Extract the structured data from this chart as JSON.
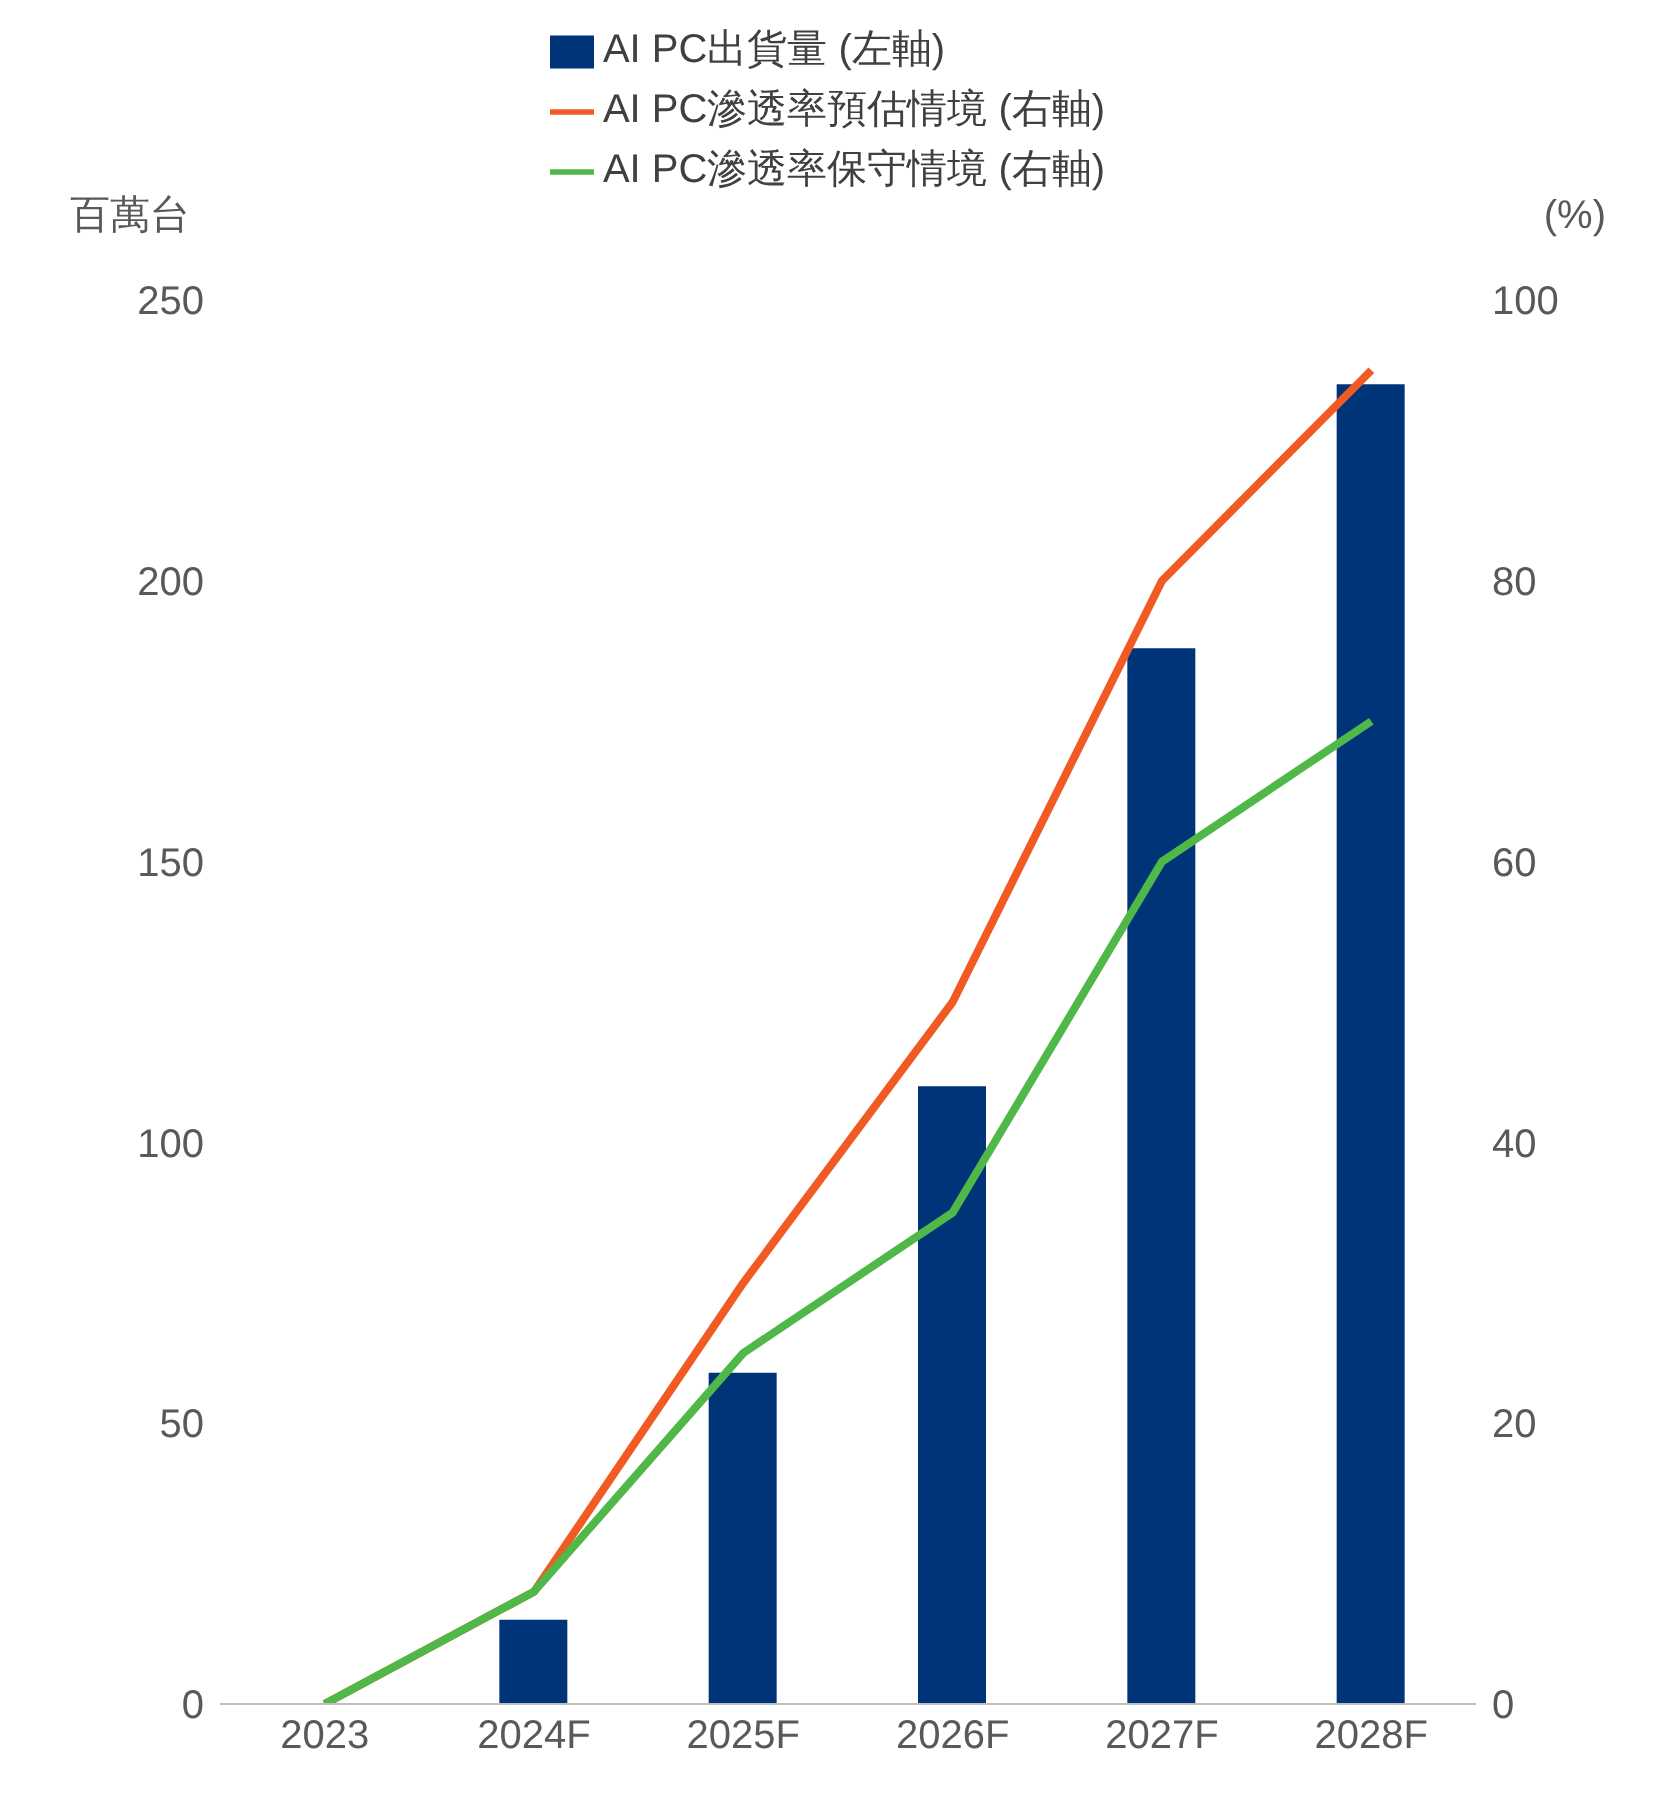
{
  "chart_data": {
    "type": "bar",
    "ylabel": "百萬台",
    "y2label": "(%)",
    "categories": [
      "2023",
      "2024F",
      "2025F",
      "2026F",
      "2027F",
      "2028F"
    ],
    "series": [
      {
        "name": "AI PC出貨量 (左軸)",
        "color": "#003479",
        "values": [
          0,
          15,
          59,
          110,
          188,
          235
        ]
      },
      {
        "name": "AI PC滲透率預估情境 (右軸)",
        "type": "line",
        "axis": "y2",
        "color": "#f15a22",
        "values": [
          0,
          8,
          30,
          50,
          80,
          95
        ]
      },
      {
        "name": "AI PC滲透率保守情境 (右軸)",
        "type": "line",
        "axis": "y2",
        "color": "#50b848",
        "values": [
          0,
          8,
          25,
          35,
          60,
          70
        ]
      }
    ],
    "ylim": [
      0,
      250
    ],
    "yticks": [
      0,
      50,
      100,
      150,
      200,
      250
    ],
    "y2lim": [
      0,
      100
    ],
    "y2ticks": [
      0,
      20,
      40,
      60,
      80,
      100
    ],
    "legend": "top",
    "grid": false,
    "marker": "none",
    "line_style": "solid"
  }
}
